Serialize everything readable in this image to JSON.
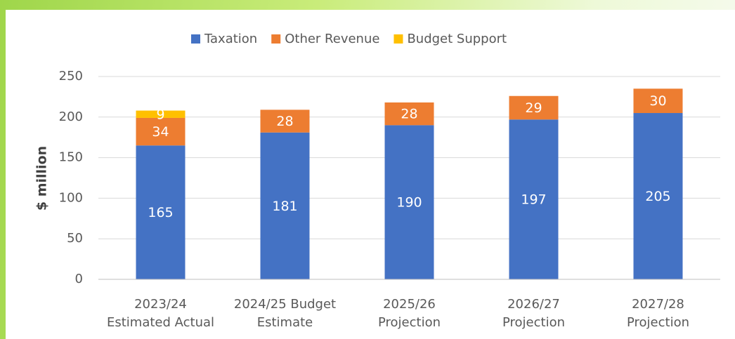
{
  "chart_data": {
    "type": "stacked_bar",
    "y_label": "$ million",
    "categories": [
      "2023/24\nEstimated Actual",
      "2024/25 Budget\nEstimate",
      "2025/26\nProjection",
      "2026/27\nProjection",
      "2027/28\nProjection"
    ],
    "series": [
      {
        "name": "Taxation",
        "color": "#4472c4",
        "values": [
          165,
          181,
          190,
          197,
          205
        ]
      },
      {
        "name": "Other Revenue",
        "color": "#ed7d31",
        "values": [
          34,
          28,
          28,
          29,
          30
        ]
      },
      {
        "name": "Budget Support",
        "color": "#ffc000",
        "values": [
          9,
          null,
          null,
          null,
          null
        ]
      }
    ],
    "ylim": [
      0,
      250
    ],
    "yticks": [
      0,
      50,
      100,
      150,
      200,
      250
    ],
    "grid": true,
    "legend": "top"
  }
}
